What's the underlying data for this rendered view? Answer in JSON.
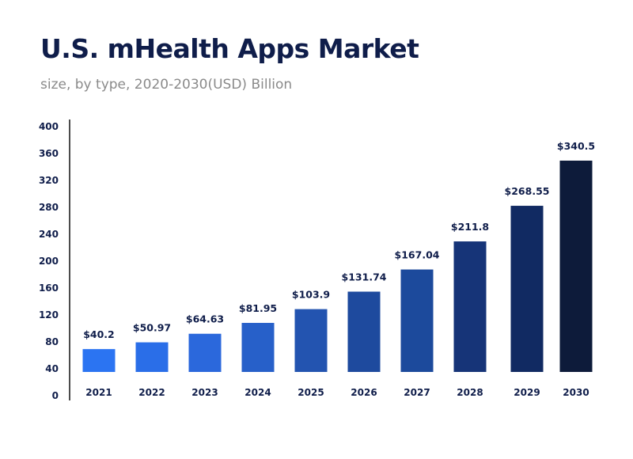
{
  "chart_data": {
    "type": "bar",
    "title": "U.S. mHealth Apps Market",
    "subtitle": "size, by type, 2020-2030(USD) Billion",
    "categories": [
      "2021",
      "2022",
      "2023",
      "2024",
      "2025",
      "2026",
      "2027",
      "2028",
      "2029",
      "2030"
    ],
    "values": [
      40.2,
      50.97,
      64.63,
      81.95,
      103.9,
      131.74,
      167.04,
      211.8,
      268.55,
      340.5
    ],
    "data_labels": [
      "$40.2",
      "$50.97",
      "$64.63",
      "$81.95",
      "$103.9",
      "$131.74",
      "$167.04",
      "$211.8",
      "$268.55",
      "$340.5"
    ],
    "y_ticks": [
      "0",
      "40",
      "80",
      "120",
      "160",
      "200",
      "240",
      "280",
      "320",
      "360",
      "400"
    ],
    "ylim": [
      0,
      400
    ],
    "grid": false,
    "xlabel": "",
    "ylabel": "",
    "colors": [
      "#2b74f2",
      "#2a6ee8",
      "#2b68dc",
      "#2760c9",
      "#2354b0",
      "#1e4a9e",
      "#1c4a9c",
      "#163478",
      "#112a62",
      "#0d1b3a"
    ]
  }
}
